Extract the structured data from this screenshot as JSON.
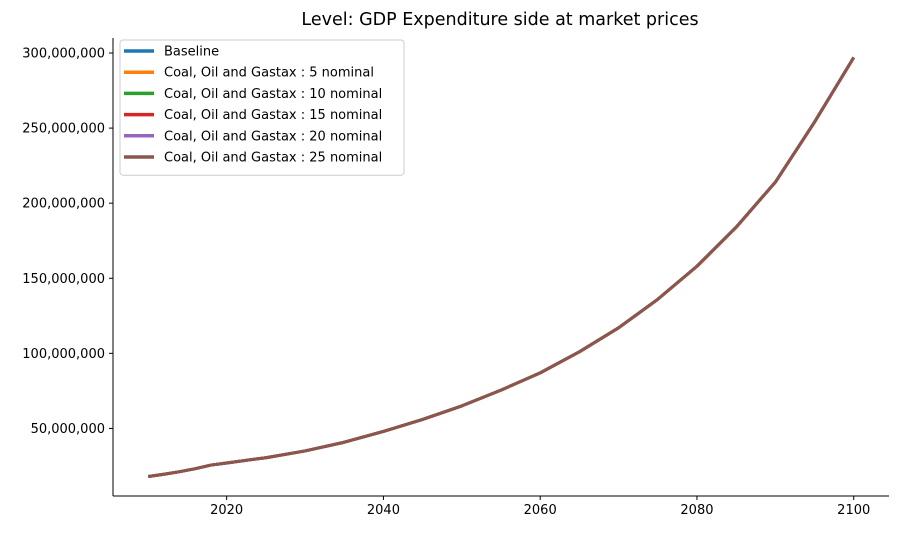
{
  "chart_data": {
    "type": "line",
    "title": "Level: GDP Expenditure side at market prices",
    "xlabel": "",
    "ylabel": "",
    "xlim": [
      2005.5,
      2104.5
    ],
    "ylim": [
      5000000,
      310000000
    ],
    "xticks": [
      2020,
      2040,
      2060,
      2080,
      2100
    ],
    "xtick_labels": [
      "2020",
      "2040",
      "2060",
      "2080",
      "2100"
    ],
    "yticks": [
      50000000,
      100000000,
      150000000,
      200000000,
      250000000,
      300000000
    ],
    "ytick_labels": [
      "50,000,000",
      "100,000,000",
      "150,000,000",
      "200,000,000",
      "250,000,000",
      "300,000,000"
    ],
    "grid": false,
    "legend_position": "top-left",
    "x": [
      2010,
      2012,
      2014,
      2016,
      2018,
      2020,
      2025,
      2030,
      2035,
      2040,
      2045,
      2050,
      2055,
      2060,
      2065,
      2070,
      2075,
      2080,
      2085,
      2090,
      2095,
      2100
    ],
    "series": [
      {
        "name": "Baseline",
        "color": "#1f77b4",
        "values": [
          18000000,
          19500000,
          21200000,
          23200000,
          25600000,
          27000000,
          30500000,
          35000000,
          40800000,
          48000000,
          56000000,
          65000000,
          75500000,
          87000000,
          101000000,
          117000000,
          136000000,
          158000000,
          184000000,
          214000000,
          254000000,
          297000000
        ]
      },
      {
        "name": "Coal, Oil and Gastax : 5 nominal",
        "color": "#ff7f0e",
        "values": [
          18000000,
          19500000,
          21200000,
          23200000,
          25600000,
          27000000,
          30500000,
          35000000,
          40800000,
          48000000,
          56000000,
          65000000,
          75500000,
          87000000,
          101000000,
          117000000,
          136000000,
          158000000,
          184000000,
          214000000,
          254000000,
          297000000
        ]
      },
      {
        "name": "Coal, Oil and Gastax : 10 nominal",
        "color": "#2ca02c",
        "values": [
          18000000,
          19500000,
          21200000,
          23200000,
          25600000,
          27000000,
          30500000,
          35000000,
          40800000,
          48000000,
          56000000,
          65000000,
          75500000,
          87000000,
          101000000,
          117000000,
          136000000,
          158000000,
          184000000,
          214000000,
          254000000,
          297000000
        ]
      },
      {
        "name": "Coal, Oil and Gastax : 15 nominal",
        "color": "#d62728",
        "values": [
          18000000,
          19500000,
          21200000,
          23200000,
          25600000,
          27000000,
          30500000,
          35000000,
          40800000,
          48000000,
          56000000,
          65000000,
          75500000,
          87000000,
          101000000,
          117000000,
          136000000,
          158000000,
          184000000,
          214000000,
          254000000,
          297000000
        ]
      },
      {
        "name": "Coal, Oil and Gastax : 20 nominal",
        "color": "#9467bd",
        "values": [
          18000000,
          19500000,
          21200000,
          23200000,
          25600000,
          27000000,
          30500000,
          35000000,
          40800000,
          48000000,
          56000000,
          65000000,
          75500000,
          87000000,
          101000000,
          117000000,
          136000000,
          158000000,
          184000000,
          214000000,
          254000000,
          297000000
        ]
      },
      {
        "name": "Coal, Oil and Gastax : 25 nominal",
        "color": "#8c564b",
        "values": [
          18000000,
          19500000,
          21200000,
          23200000,
          25600000,
          27000000,
          30500000,
          35000000,
          40800000,
          48000000,
          56000000,
          65000000,
          75500000,
          87000000,
          101000000,
          117000000,
          136000000,
          158000000,
          184000000,
          214000000,
          254000000,
          297000000
        ]
      }
    ]
  }
}
